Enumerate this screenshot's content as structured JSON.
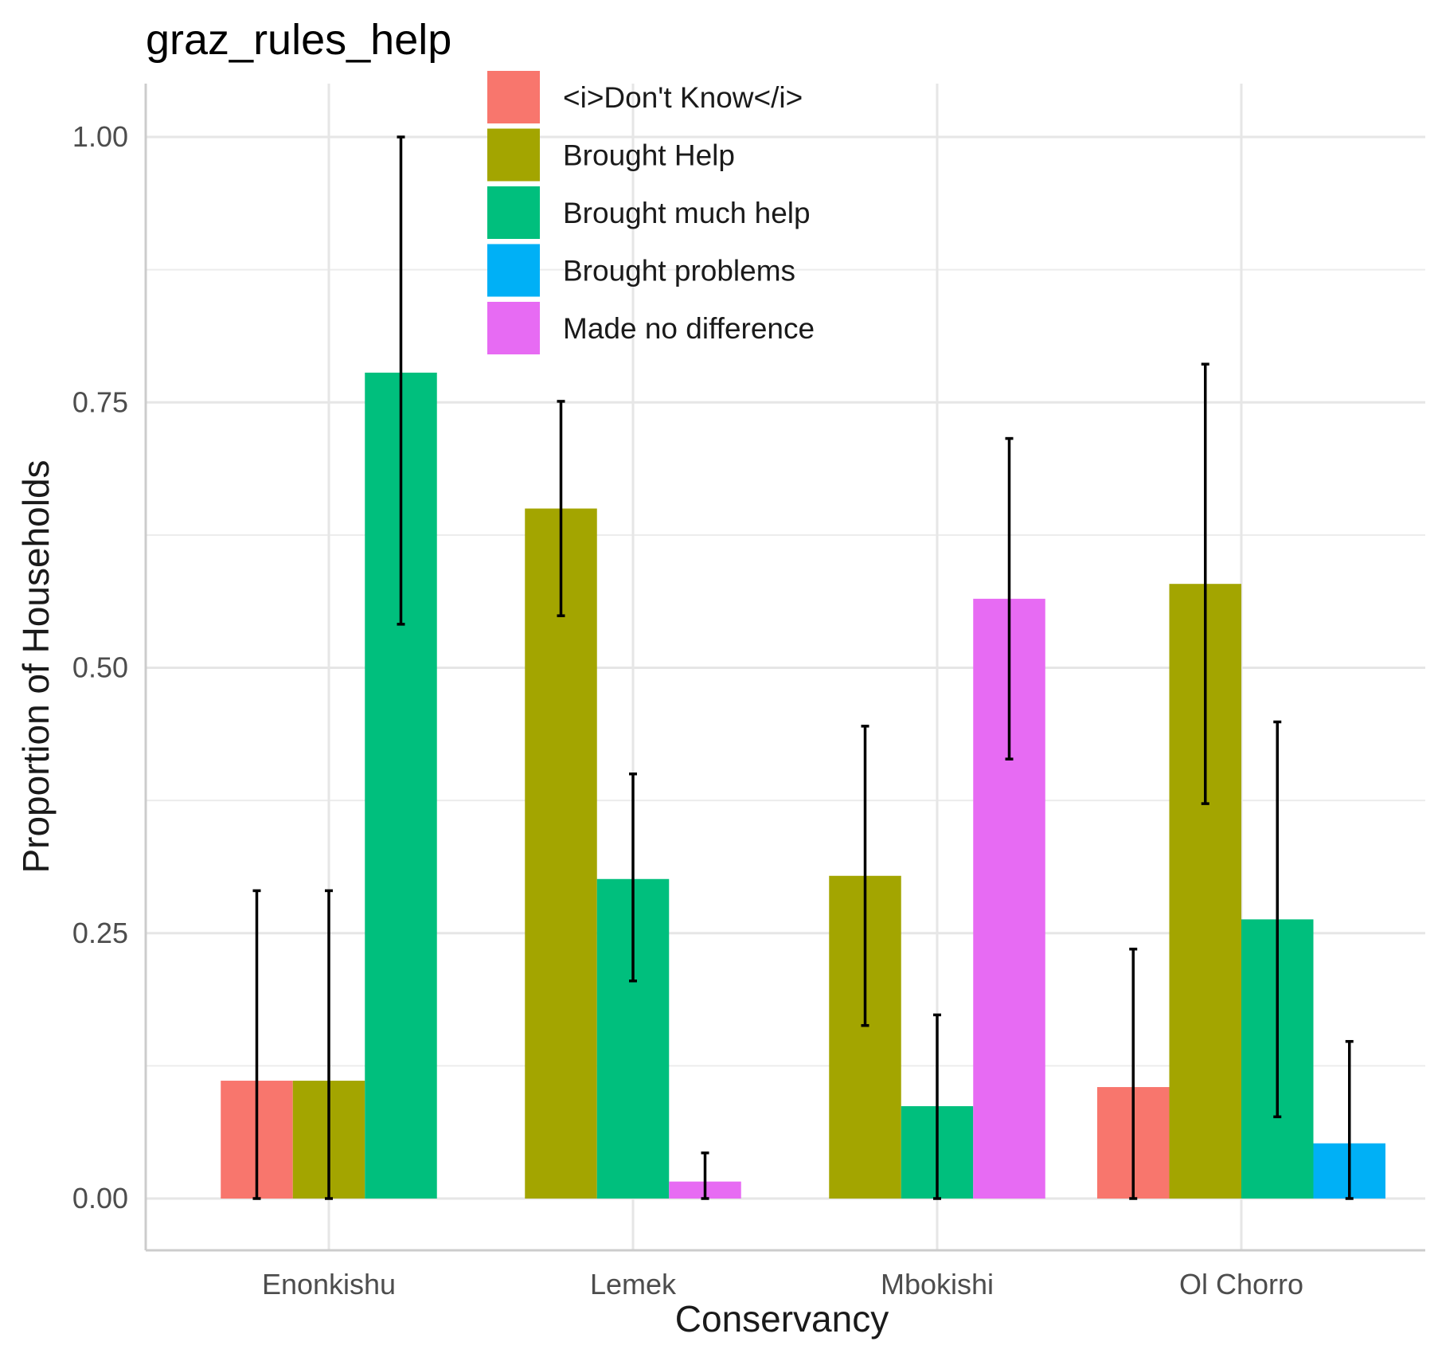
{
  "chart_data": {
    "type": "bar",
    "title": "graz_rules_help",
    "xlabel": "Conservancy",
    "ylabel": "Proportion of Households",
    "categories": [
      "Enonkishu",
      "Lemek",
      "Mbokishi",
      "Ol Chorro"
    ],
    "ylim": [
      -0.05,
      1.05
    ],
    "yticks": [
      0.0,
      0.25,
      0.5,
      0.75,
      1.0
    ],
    "ytick_labels": [
      "0.00",
      "0.25",
      "0.50",
      "0.75",
      "1.00"
    ],
    "grid": true,
    "legend_position": "top",
    "series": [
      {
        "name": "<i>Don't Know</i>",
        "color": "#F8766D",
        "values": [
          0.111,
          null,
          null,
          0.105
        ],
        "err_low": [
          0.0,
          null,
          null,
          0.0
        ],
        "err_high": [
          0.29,
          null,
          null,
          0.235
        ]
      },
      {
        "name": "Brought Help",
        "color": "#A3A500",
        "values": [
          0.111,
          0.65,
          0.304,
          0.579
        ],
        "err_low": [
          0.0,
          0.549,
          0.163,
          0.372
        ],
        "err_high": [
          0.29,
          0.751,
          0.445,
          0.786
        ]
      },
      {
        "name": "Brought much help",
        "color": "#00BF7D",
        "values": [
          0.778,
          0.301,
          0.087,
          0.263
        ],
        "err_low": [
          0.541,
          0.205,
          0.0,
          0.077
        ],
        "err_high": [
          1.0,
          0.4,
          0.173,
          0.449
        ]
      },
      {
        "name": "Brought problems",
        "color": "#00B0F6",
        "values": [
          null,
          null,
          null,
          0.052
        ],
        "err_low": [
          null,
          null,
          null,
          0.0
        ],
        "err_high": [
          null,
          null,
          null,
          0.148
        ]
      },
      {
        "name": "Made no difference",
        "color": "#E76BF3",
        "values": [
          null,
          0.016,
          0.565,
          null
        ],
        "err_low": [
          null,
          0.0,
          0.414,
          null
        ],
        "err_high": [
          null,
          0.043,
          0.716,
          null
        ]
      }
    ]
  }
}
